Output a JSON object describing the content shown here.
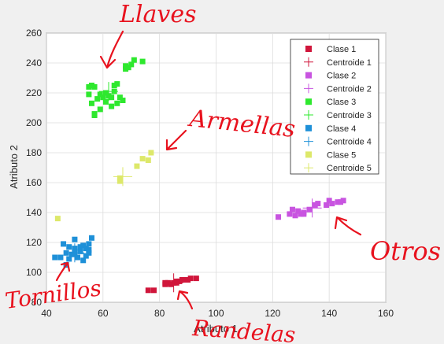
{
  "chart_data": {
    "type": "scatter",
    "xlabel": "Atributo 1",
    "ylabel": "Atributo 2",
    "xlim": [
      40,
      160
    ],
    "ylim": [
      80,
      260
    ],
    "xticks": [
      40,
      60,
      80,
      100,
      120,
      140,
      160
    ],
    "yticks": [
      80,
      100,
      120,
      140,
      160,
      180,
      200,
      220,
      240,
      260
    ],
    "legend_position": "top-right",
    "series": [
      {
        "name": "Clase 1",
        "color": "#d0163b",
        "points": [
          [
            76,
            88
          ],
          [
            78,
            88
          ],
          [
            82,
            92
          ],
          [
            83,
            93
          ],
          [
            84,
            92
          ],
          [
            85,
            93
          ],
          [
            86,
            94
          ],
          [
            87,
            94
          ],
          [
            88,
            95
          ],
          [
            89,
            95
          ],
          [
            90,
            95
          ],
          [
            91,
            96
          ],
          [
            93,
            96
          ],
          [
            82,
            93
          ],
          [
            86,
            93
          ]
        ],
        "centroid": [
          85,
          93
        ],
        "centroid_name": "Centroide 1"
      },
      {
        "name": "Clase 2",
        "color": "#c854e0",
        "points": [
          [
            122,
            137
          ],
          [
            126,
            139
          ],
          [
            127,
            142
          ],
          [
            128,
            138
          ],
          [
            129,
            141
          ],
          [
            130,
            139
          ],
          [
            131,
            140
          ],
          [
            133,
            142
          ],
          [
            135,
            145
          ],
          [
            136,
            146
          ],
          [
            139,
            145
          ],
          [
            140,
            148
          ],
          [
            141,
            146
          ],
          [
            143,
            147
          ],
          [
            144,
            147
          ],
          [
            145,
            148
          ],
          [
            131,
            139
          ]
        ],
        "centroid": [
          134,
          143
        ],
        "centroid_name": "Centroide 2"
      },
      {
        "name": "Clase 3",
        "color": "#2ee82e",
        "points": [
          [
            55,
            224
          ],
          [
            56,
            225
          ],
          [
            57,
            224
          ],
          [
            55,
            219
          ],
          [
            56,
            213
          ],
          [
            57,
            206
          ],
          [
            57,
            205
          ],
          [
            58,
            216
          ],
          [
            59,
            219
          ],
          [
            60,
            217
          ],
          [
            61,
            214
          ],
          [
            61,
            220
          ],
          [
            62,
            218
          ],
          [
            63,
            217
          ],
          [
            64,
            221
          ],
          [
            64,
            225
          ],
          [
            65,
            226
          ],
          [
            65,
            213
          ],
          [
            66,
            217
          ],
          [
            67,
            215
          ],
          [
            68,
            236
          ],
          [
            68,
            238
          ],
          [
            69,
            237
          ],
          [
            70,
            239
          ],
          [
            71,
            242
          ],
          [
            74,
            241
          ],
          [
            59,
            209
          ],
          [
            63,
            211
          ]
        ],
        "centroid": [
          62,
          221
        ],
        "centroid_name": "Centroide 3"
      },
      {
        "name": "Clase 4",
        "color": "#1e90d8",
        "points": [
          [
            43,
            110
          ],
          [
            45,
            110
          ],
          [
            46,
            119
          ],
          [
            47,
            105
          ],
          [
            47,
            113
          ],
          [
            48,
            109
          ],
          [
            48,
            117
          ],
          [
            49,
            112
          ],
          [
            50,
            113
          ],
          [
            50,
            122
          ],
          [
            50,
            116
          ],
          [
            51,
            110
          ],
          [
            52,
            114
          ],
          [
            52,
            117
          ],
          [
            53,
            108
          ],
          [
            53,
            118
          ],
          [
            54,
            116
          ],
          [
            54,
            111
          ],
          [
            55,
            113
          ],
          [
            55,
            115
          ],
          [
            56,
            123
          ],
          [
            55,
            119
          ]
        ],
        "centroid": [
          50,
          113
        ],
        "centroid_name": "Centroide 4"
      },
      {
        "name": "Clase 5",
        "color": "#dde86a",
        "points": [
          [
            44,
            136
          ],
          [
            66,
            161
          ],
          [
            66,
            163
          ],
          [
            72,
            171
          ],
          [
            74,
            176
          ],
          [
            76,
            175
          ],
          [
            77,
            180
          ]
        ],
        "centroid": [
          67,
          164
        ],
        "centroid_name": "Centroide 5"
      }
    ]
  },
  "annotations": [
    {
      "text": "Llaves",
      "color": "#e8121e"
    },
    {
      "text": "Armellas",
      "color": "#e8121e"
    },
    {
      "text": "Otros",
      "color": "#e8121e"
    },
    {
      "text": "Tornillos",
      "color": "#e8121e"
    },
    {
      "text": "Randelas",
      "color": "#e8121e"
    }
  ]
}
